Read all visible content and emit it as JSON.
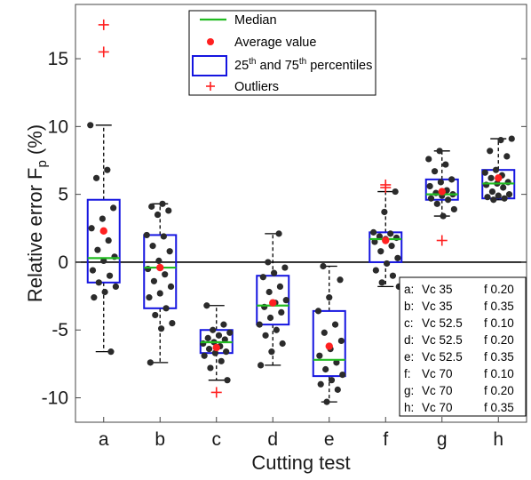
{
  "chart_data": {
    "type": "box",
    "xlabel": "Cutting test",
    "ylabel": "Relative error F",
    "ylabel_sub": "p",
    "ylabel_unit": "(%)",
    "ylim": [
      -11.8,
      19.0
    ],
    "yticks": [
      -10,
      -5,
      0,
      5,
      10,
      15
    ],
    "ytick_labels": [
      "-10",
      "-5",
      "0",
      "5",
      "10",
      "15"
    ],
    "categories": [
      "a",
      "b",
      "c",
      "d",
      "e",
      "f",
      "g",
      "h"
    ],
    "zero_line": true,
    "grid": false,
    "colors": {
      "median": "#22bb22",
      "mean": "#ff2020",
      "box": "#1515e0",
      "outlier": "#ff2020",
      "points": "#2b2b2b",
      "whisker": "#000000"
    },
    "boxes": [
      {
        "category": "a",
        "whisker_low": -6.6,
        "q1": -1.5,
        "median": 0.3,
        "q3": 4.6,
        "whisker_high": 10.1,
        "mean": 2.3,
        "outliers": [
          17.5,
          15.5
        ],
        "points": [
          10.1,
          6.8,
          6.2,
          4.0,
          3.2,
          2.5,
          1.6,
          0.9,
          0.4,
          0.1,
          -0.6,
          -1.0,
          -1.5,
          -1.8,
          -2.2,
          -2.6,
          -6.6
        ]
      },
      {
        "category": "b",
        "whisker_low": -7.4,
        "q1": -3.4,
        "median": -0.4,
        "q3": 2.0,
        "whisker_high": 4.3,
        "mean": -0.4,
        "outliers": [],
        "points": [
          4.3,
          4.1,
          3.8,
          3.5,
          2.0,
          1.9,
          1.2,
          0.8,
          0.1,
          -0.5,
          -0.9,
          -1.4,
          -1.8,
          -2.3,
          -2.6,
          -3.4,
          -3.9,
          -4.5,
          -4.9,
          -7.4
        ]
      },
      {
        "category": "c",
        "whisker_low": -8.7,
        "q1": -6.7,
        "median": -5.9,
        "q3": -5.0,
        "whisker_high": -3.2,
        "mean": -6.3,
        "outliers": [
          -9.6
        ],
        "points": [
          -3.2,
          -4.6,
          -5.0,
          -5.2,
          -5.4,
          -5.6,
          -5.7,
          -5.9,
          -6.0,
          -6.2,
          -6.4,
          -6.6,
          -6.7,
          -6.9,
          -7.3,
          -7.8,
          -8.7
        ]
      },
      {
        "category": "d",
        "whisker_low": -7.6,
        "q1": -4.6,
        "median": -3.2,
        "q3": -1.0,
        "whisker_high": 2.1,
        "mean": -3.0,
        "outliers": [],
        "points": [
          2.1,
          0.0,
          -0.4,
          -0.8,
          -1.1,
          -1.8,
          -2.2,
          -2.8,
          -3.0,
          -3.3,
          -3.7,
          -4.1,
          -4.6,
          -5.0,
          -5.4,
          -6.0,
          -6.6,
          -7.6
        ]
      },
      {
        "category": "e",
        "whisker_low": -10.3,
        "q1": -8.4,
        "median": -7.2,
        "q3": -3.6,
        "whisker_high": -0.3,
        "mean": -6.2,
        "outliers": [],
        "points": [
          -0.3,
          -1.3,
          -2.6,
          -3.6,
          -4.6,
          -5.2,
          -5.8,
          -6.4,
          -6.9,
          -7.4,
          -7.9,
          -8.3,
          -8.7,
          -9.0,
          -9.4,
          -10.3
        ]
      },
      {
        "category": "f",
        "whisker_low": -1.8,
        "q1": 0.0,
        "median": 1.7,
        "q3": 2.2,
        "whisker_high": 5.2,
        "mean": 1.6,
        "outliers": [
          5.7,
          5.5
        ],
        "points": [
          5.2,
          3.7,
          2.2,
          2.1,
          1.9,
          1.8,
          1.7,
          1.5,
          1.2,
          0.8,
          0.3,
          -0.1,
          -0.6,
          -1.0,
          -1.5,
          -1.8
        ]
      },
      {
        "category": "g",
        "whisker_low": 3.4,
        "q1": 4.6,
        "median": 5.0,
        "q3": 6.1,
        "whisker_high": 8.2,
        "mean": 5.2,
        "outliers": [
          1.6
        ],
        "points": [
          8.2,
          7.6,
          7.2,
          6.7,
          6.1,
          5.9,
          5.6,
          5.3,
          5.1,
          5.0,
          4.9,
          4.7,
          4.6,
          4.3,
          3.9,
          3.4
        ]
      },
      {
        "category": "h",
        "whisker_low": 4.6,
        "q1": 4.7,
        "median": 5.8,
        "q3": 6.8,
        "whisker_high": 9.1,
        "mean": 6.2,
        "outliers": [],
        "points": [
          9.1,
          9.0,
          8.2,
          7.8,
          6.8,
          6.6,
          6.4,
          6.2,
          5.9,
          5.8,
          5.7,
          5.5,
          5.2,
          5.0,
          4.9,
          4.8,
          4.7,
          4.6
        ]
      }
    ],
    "legend": {
      "placement": "top-center",
      "entries": [
        {
          "symbol": "line",
          "label": "Median"
        },
        {
          "symbol": "dot",
          "label": "Average value"
        },
        {
          "symbol": "box",
          "label_main": "25",
          "sup1": "th",
          "label_mid": " and 75",
          "sup2": "th",
          "label_end": " percentiles"
        },
        {
          "symbol": "plus",
          "label": "Outliers"
        }
      ]
    },
    "condition_table": {
      "placement": "bottom-right",
      "rows": [
        {
          "id": "a:",
          "vc": "Vc 35",
          "f": "f 0.20"
        },
        {
          "id": "b:",
          "vc": "Vc 35",
          "f": "f 0.35"
        },
        {
          "id": "c:",
          "vc": "Vc 52.5",
          "f": "f 0.10"
        },
        {
          "id": "d:",
          "vc": "Vc 52.5",
          "f": "f 0.20"
        },
        {
          "id": "e:",
          "vc": "Vc 52.5",
          "f": "f 0.35"
        },
        {
          "id": "f:",
          "vc": " Vc 70",
          "f": "f 0.10"
        },
        {
          "id": "g:",
          "vc": "Vc 70",
          "f": "f 0.20"
        },
        {
          "id": "h:",
          "vc": "Vc 70",
          "f": "f 0.35"
        }
      ]
    }
  }
}
